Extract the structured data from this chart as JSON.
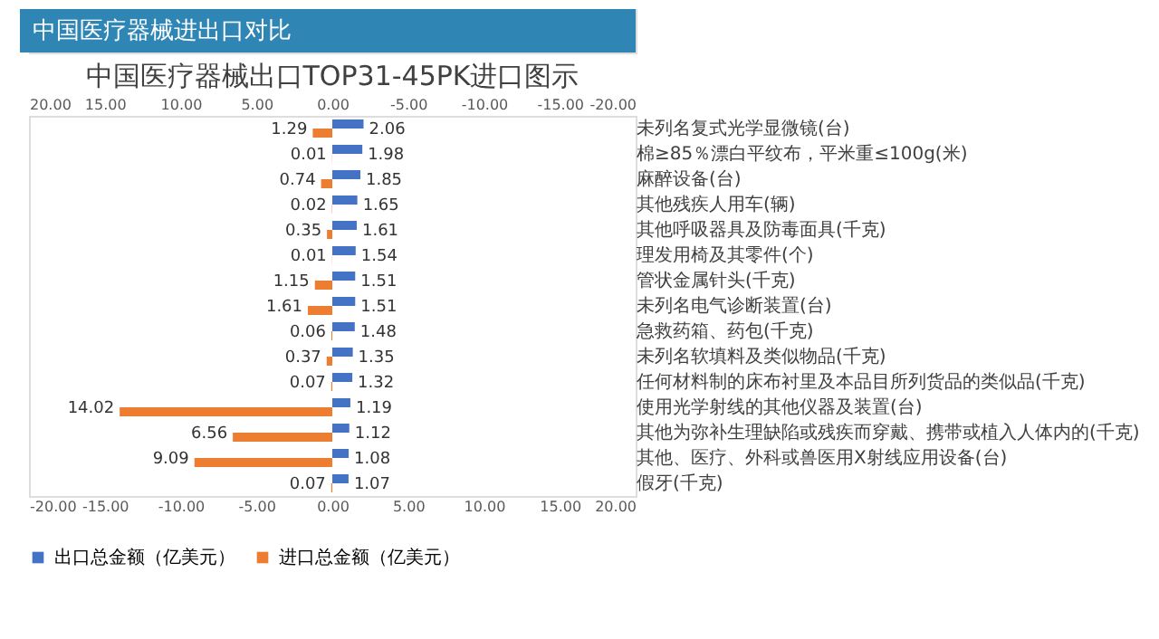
{
  "chart_data": {
    "type": "bar",
    "orientation": "horizontal",
    "title": "中国医疗器械进出口对比",
    "subtitle": "中国医疗器械出口TOP31-45PK进口图示",
    "categories": [
      "未列名复式光学显微镜(台)",
      "棉≥85％漂白平纹布，平米重≤100g(米)",
      "麻醉设备(台)",
      "其他残疾人用车(辆)",
      "其他呼吸器具及防毒面具(千克)",
      "理发用椅及其零件(个)",
      "管状金属针头(千克)",
      "未列名电气诊断装置(台)",
      "急救药箱、药包(千克)",
      "未列名软填料及类似物品(千克)",
      "任何材料制的床布衬里及本品目所列货品的类似品(千克)",
      "使用光学射线的其他仪器及装置(台)",
      "其他为弥补生理缺陷或残疾而穿戴、携带或植入人体内的(千克)",
      "其他、医疗、外科或兽医用X射线应用设备(台)",
      "假牙(千克)"
    ],
    "series": [
      {
        "name": "出口总金额（亿美元）",
        "color": "#4472c4",
        "values": [
          2.06,
          1.98,
          1.85,
          1.65,
          1.61,
          1.54,
          1.51,
          1.51,
          1.48,
          1.35,
          1.32,
          1.19,
          1.12,
          1.08,
          1.07
        ],
        "value_labels": [
          "2.06",
          "1.98",
          "1.85",
          "1.65",
          "1.61",
          "1.54",
          "1.51",
          "1.51",
          "1.48",
          "1.35",
          "1.32",
          "1.19",
          "1.12",
          "1.08",
          "1.07"
        ]
      },
      {
        "name": "进口总金额（亿美元）",
        "color": "#ed7d31",
        "axis": "x2",
        "values": [
          1.29,
          0.01,
          0.74,
          0.02,
          0.35,
          0.01,
          1.15,
          1.61,
          0.06,
          0.37,
          0.07,
          14.02,
          6.56,
          9.09,
          0.07
        ],
        "value_labels": [
          "1.29",
          "0.01",
          "0.74",
          "0.02",
          "0.35",
          "0.01",
          "1.15",
          "1.61",
          "0.06",
          "0.37",
          "0.07",
          "14.02",
          "6.56",
          "9.09",
          "0.07"
        ]
      }
    ],
    "xlim": [
      -20,
      20
    ],
    "xticks": [
      {
        "value": -20,
        "label": "-20.00"
      },
      {
        "value": -15,
        "label": "-15.00"
      },
      {
        "value": -10,
        "label": "-10.00"
      },
      {
        "value": -5,
        "label": "-5.00"
      },
      {
        "value": 0,
        "label": "0.00"
      },
      {
        "value": 5,
        "label": "5.00"
      },
      {
        "value": 10,
        "label": "10.00"
      },
      {
        "value": 15,
        "label": "15.00"
      },
      {
        "value": 20,
        "label": "20.00"
      }
    ],
    "x2lim": [
      20,
      -20
    ],
    "x2ticks": [
      {
        "value": 20,
        "label": "20.00"
      },
      {
        "value": 15,
        "label": "15.00"
      },
      {
        "value": 10,
        "label": "10.00"
      },
      {
        "value": 5,
        "label": "5.00"
      },
      {
        "value": 0,
        "label": "0.00"
      },
      {
        "value": -5,
        "label": "-5.00"
      },
      {
        "value": -10,
        "label": "-10.00"
      },
      {
        "value": -15,
        "label": "-15.00"
      },
      {
        "value": -20,
        "label": "-20.00"
      }
    ],
    "legend": "bottom"
  }
}
